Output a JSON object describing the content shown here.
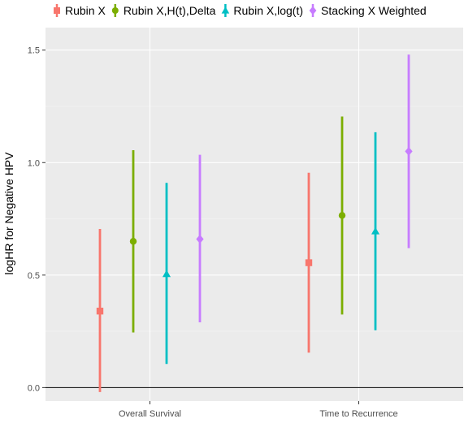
{
  "chart_data": {
    "type": "errorbar",
    "title": "",
    "xlabel": "",
    "ylabel": "logHR for Negative HPV",
    "categories": [
      "Overall Survival",
      "Time to Recurrence"
    ],
    "ylim": [
      -0.06,
      1.6
    ],
    "yticks": [
      "0.0",
      "0.5",
      "1.0",
      "1.5"
    ],
    "reference_line_y": 0,
    "grid": true,
    "legend_position": "top",
    "background": "#ebebeb",
    "series": [
      {
        "name": "Rubin X",
        "color": "#f8766d",
        "marker": "square",
        "estimate": [
          0.34,
          0.555
        ],
        "lower": [
          -0.02,
          0.155
        ],
        "upper": [
          0.705,
          0.955
        ]
      },
      {
        "name": "Rubin X,H(t),Delta",
        "color": "#7cae00",
        "marker": "circle",
        "estimate": [
          0.65,
          0.765
        ],
        "lower": [
          0.245,
          0.325
        ],
        "upper": [
          1.055,
          1.205
        ]
      },
      {
        "name": "Rubin X,log(t)",
        "color": "#00bfc4",
        "marker": "triangle",
        "estimate": [
          0.505,
          0.695
        ],
        "lower": [
          0.105,
          0.255
        ],
        "upper": [
          0.91,
          1.135
        ]
      },
      {
        "name": "Stacking X Weighted",
        "color": "#c77cff",
        "marker": "diamond",
        "estimate": [
          0.66,
          1.05
        ],
        "lower": [
          0.29,
          0.62
        ],
        "upper": [
          1.035,
          1.48
        ]
      }
    ]
  }
}
